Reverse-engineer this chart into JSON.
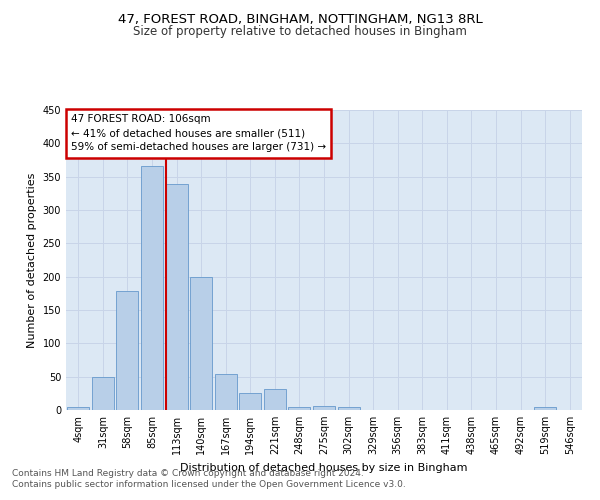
{
  "title1": "47, FOREST ROAD, BINGHAM, NOTTINGHAM, NG13 8RL",
  "title2": "Size of property relative to detached houses in Bingham",
  "xlabel": "Distribution of detached houses by size in Bingham",
  "ylabel": "Number of detached properties",
  "categories": [
    "4sqm",
    "31sqm",
    "58sqm",
    "85sqm",
    "113sqm",
    "140sqm",
    "167sqm",
    "194sqm",
    "221sqm",
    "248sqm",
    "275sqm",
    "302sqm",
    "329sqm",
    "356sqm",
    "383sqm",
    "411sqm",
    "438sqm",
    "465sqm",
    "492sqm",
    "519sqm",
    "546sqm"
  ],
  "values": [
    4,
    49,
    179,
    366,
    339,
    199,
    54,
    26,
    32,
    4,
    6,
    4,
    0,
    0,
    0,
    0,
    0,
    0,
    0,
    4,
    0
  ],
  "bar_color": "#b8cfe8",
  "bar_edge_color": "#6699cc",
  "red_line_index": 4,
  "annotation_line1": "47 FOREST ROAD: 106sqm",
  "annotation_line2": "← 41% of detached houses are smaller (511)",
  "annotation_line3": "59% of semi-detached houses are larger (731) →",
  "annotation_box_color": "#ffffff",
  "annotation_box_edge_color": "#cc0000",
  "ylim": [
    0,
    450
  ],
  "yticks": [
    0,
    50,
    100,
    150,
    200,
    250,
    300,
    350,
    400,
    450
  ],
  "grid_color": "#c8d4e8",
  "background_color": "#dce8f4",
  "footer1": "Contains HM Land Registry data © Crown copyright and database right 2024.",
  "footer2": "Contains public sector information licensed under the Open Government Licence v3.0.",
  "title1_fontsize": 9.5,
  "title2_fontsize": 8.5,
  "xlabel_fontsize": 8,
  "ylabel_fontsize": 8,
  "ann_fontsize": 7.5,
  "tick_fontsize": 7,
  "footer_fontsize": 6.5
}
